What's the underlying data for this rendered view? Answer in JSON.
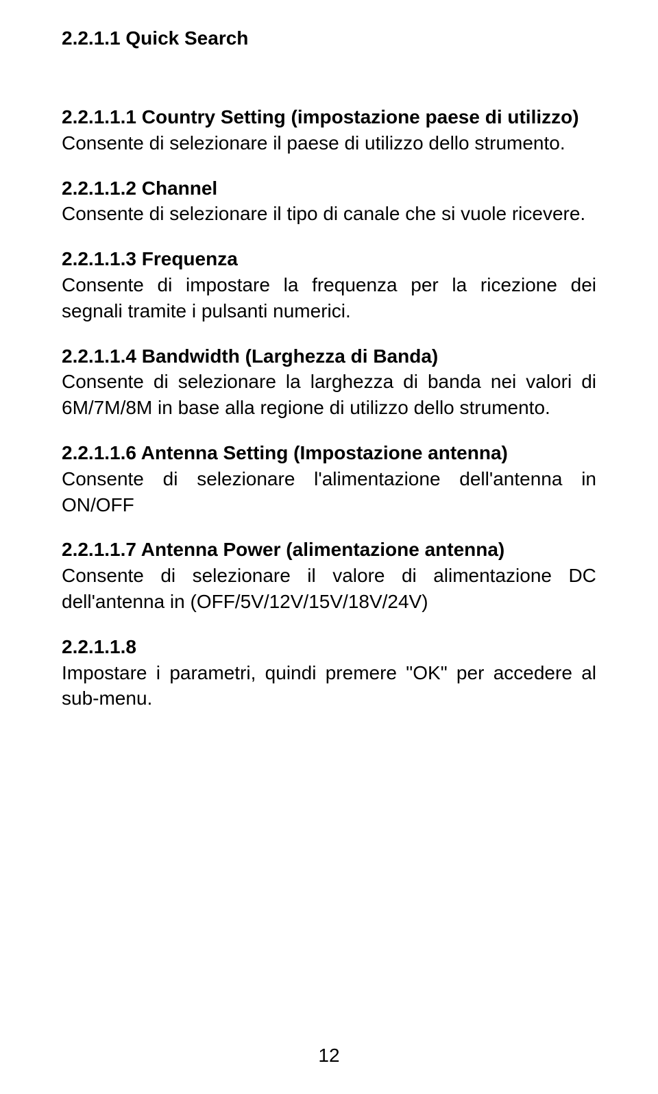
{
  "page": {
    "title": "2.2.1.1 Quick Search",
    "page_number": "12"
  },
  "sections": {
    "s1": {
      "heading": "2.2.1.1.1 Country Setting (impostazione paese di utilizzo)",
      "body": "Consente di selezionare il paese di utilizzo dello strumento."
    },
    "s2": {
      "heading": "2.2.1.1.2 Channel",
      "body": "Consente di selezionare il tipo di canale che si vuole ricevere."
    },
    "s3": {
      "heading": "2.2.1.1.3 Frequenza",
      "body": "Consente di impostare la frequenza per la ricezione dei segnali tramite i pulsanti numerici."
    },
    "s4": {
      "heading": "2.2.1.1.4 Bandwidth (Larghezza di Banda)",
      "body": "Consente di selezionare  la larghezza di banda nei valori di 6M/7M/8M in base alla regione di utilizzo dello strumento."
    },
    "s6": {
      "heading": "2.2.1.1.6 Antenna Setting (Impostazione antenna)",
      "body_parts": {
        "lead": "Consente",
        "w1": "di",
        "w2": "selezionare",
        "w3": "l'alimentazione",
        "w4": "dell'antenna",
        "w5": "in",
        "line2": "ON/OFF"
      }
    },
    "s7": {
      "heading": "2.2.1.1.7   Antenna Power (alimentazione antenna)",
      "body_parts": {
        "line1_words": [
          "Consente",
          "di",
          "selezionare",
          "il",
          "valore",
          "di",
          "alimentazione",
          "DC"
        ],
        "line2": "dell'antenna in (OFF/5V/12V/15V/18V/24V)"
      }
    },
    "s8": {
      "heading": "2.2.1.1.8",
      "body": "Impostare i parametri, quindi premere \"OK\" per accedere al sub-menu."
    }
  }
}
